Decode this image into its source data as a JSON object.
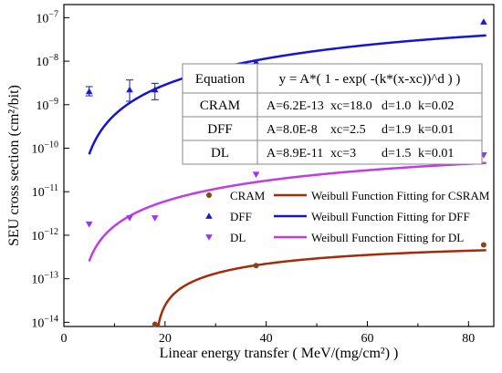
{
  "chart_data": {
    "type": "scatter",
    "title": "",
    "xlabel": "Linear energy transfer ( MeV/(mg/cm²) )",
    "ylabel": "SEU cross section (cm²/bit)",
    "xlim": [
      0,
      85
    ],
    "ylim": [
      8e-15,
      2e-07
    ],
    "yscale": "log",
    "grid": false,
    "xticks": [
      0,
      20,
      40,
      60,
      80
    ],
    "xtick_labels": [
      "0",
      "20",
      "40",
      "60",
      "80"
    ],
    "yticks": [
      1e-14,
      1e-13,
      1e-12,
      1e-11,
      1e-10,
      1e-09,
      1e-08,
      1e-07
    ],
    "series": [
      {
        "name": "CRAM",
        "marker": "circle",
        "color": "#8b4513",
        "points": [
          {
            "x": 18.0,
            "y": 9e-15
          },
          {
            "x": 38.0,
            "y": 2e-13
          },
          {
            "x": 83.0,
            "y": 6e-13
          }
        ]
      },
      {
        "name": "DFF",
        "marker": "triangle-up",
        "color": "#1a1acd",
        "points": [
          {
            "x": 5.0,
            "y": 2e-09,
            "err": [
              1.6e-09,
              2.6e-09
            ]
          },
          {
            "x": 13.0,
            "y": 2.2e-09,
            "err": [
              1.2e-09,
              3.7e-09
            ]
          },
          {
            "x": 18.0,
            "y": 2.2e-09,
            "err": [
              1.3e-09,
              3.1e-09
            ]
          },
          {
            "x": 38.0,
            "y": 9.5e-09
          },
          {
            "x": 83.0,
            "y": 8e-08
          }
        ]
      },
      {
        "name": "DL",
        "marker": "triangle-down",
        "color": "#9b30ff",
        "points": [
          {
            "x": 5.0,
            "y": 1.8e-12
          },
          {
            "x": 13.0,
            "y": 2.5e-12
          },
          {
            "x": 18.0,
            "y": 2.5e-12
          },
          {
            "x": 38.0,
            "y": 2.5e-11
          },
          {
            "x": 83.0,
            "y": 7e-11
          }
        ]
      }
    ],
    "fits": [
      {
        "name": "Weibull Function Fitting for CSRAM",
        "color": "#a52a0a",
        "A": 6.2e-13,
        "xc": 18.0,
        "d": 1.0,
        "k": 0.02,
        "x_start": 18.0
      },
      {
        "name": "Weibull Function Fitting for DFF",
        "color": "#1414d2",
        "A": 8e-08,
        "xc": 2.5,
        "d": 1.9,
        "k": 0.01,
        "x_start": 5.0
      },
      {
        "name": "Weibull Function Fitting for DL",
        "color": "#c23ce6",
        "A": 8.9e-11,
        "xc": 3.0,
        "d": 1.5,
        "k": 0.01,
        "x_start": 5.0
      }
    ],
    "legend": {
      "placement": "lower-center",
      "entries": [
        {
          "marker_label": "CRAM",
          "line_label": "Weibull Function Fitting for CSRAM"
        },
        {
          "marker_label": "DFF",
          "line_label": "Weibull Function Fitting for DFF"
        },
        {
          "marker_label": "DL",
          "line_label": "Weibull Function Fitting for DL"
        }
      ]
    },
    "table": {
      "placement": "upper-right",
      "header": [
        "Equation",
        "y = A*( 1 - exp( -(k*(x-xc))^d ) )"
      ],
      "rows": [
        [
          "CRAM",
          "A=6.2E-13",
          "xc=18.0",
          "d=1.0",
          "k=0.02"
        ],
        [
          "DFF",
          "A=8.0E-8",
          "xc=2.5",
          "d=1.9",
          "k=0.01"
        ],
        [
          "DL",
          "A=8.9E-11",
          "xc=3",
          "d=1.5",
          "k=0.01"
        ]
      ]
    }
  }
}
